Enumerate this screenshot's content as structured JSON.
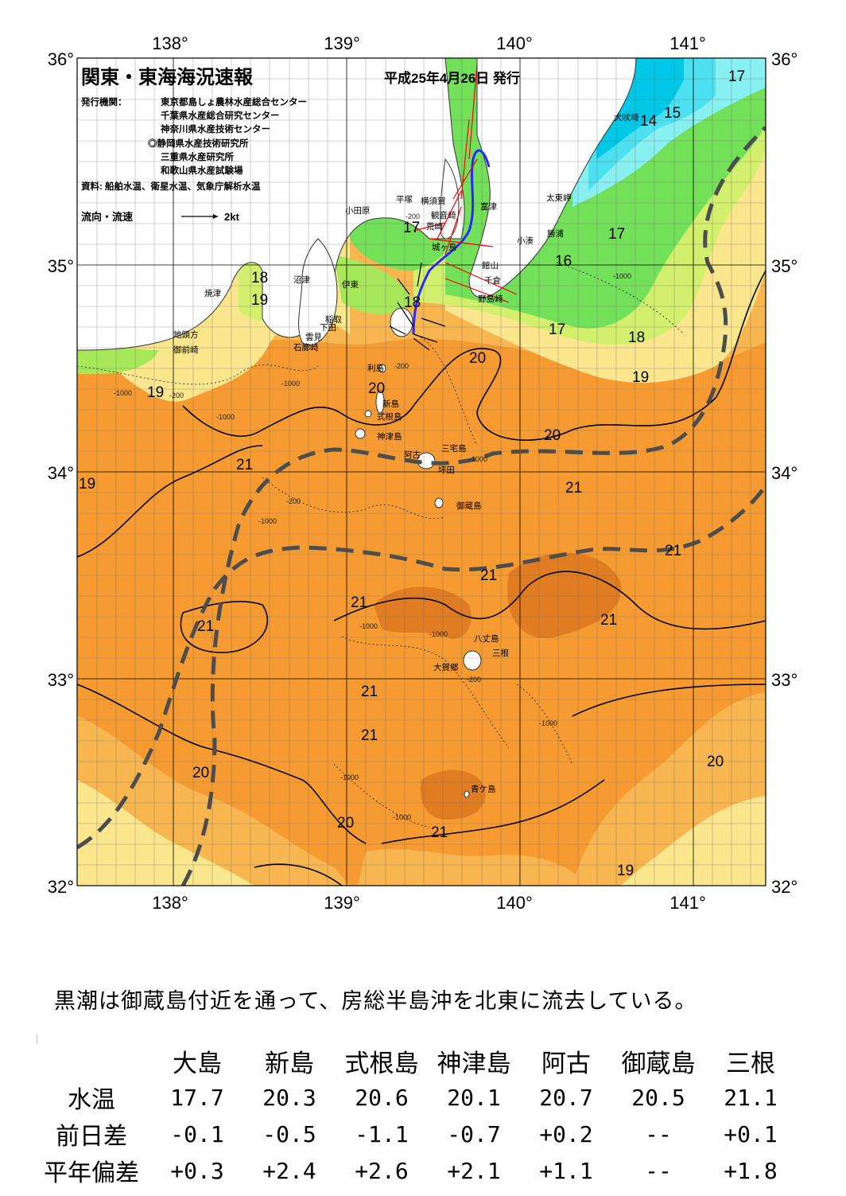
{
  "map": {
    "title": "関東・東海海況速報",
    "issue_date": "平成25年4月26日 発行",
    "publisher_label": "発行機関：",
    "publishers": [
      "東京都島しょ農林水産総合センター",
      "千葉県水産総合研究センター",
      "神奈川県水産技術センター",
      "◎静岡県水産技術研究所",
      "三重県水産研究所",
      "和歌山県水産試験場"
    ],
    "source": "資料: 船舶水温、衛星水温、気象庁解析水温",
    "legend_label": "流向・流速",
    "legend_value": "2kt",
    "longitude_labels": [
      "138°",
      "139°",
      "140°",
      "141°"
    ],
    "latitude_labels": [
      "36°",
      "35°",
      "34°",
      "33°",
      "32°"
    ],
    "place_labels": [
      "犬吠埼",
      "太東岬",
      "勝浦",
      "小湊",
      "富津",
      "館山",
      "千倉",
      "野島崎",
      "横須賀",
      "観音崎",
      "平塚",
      "荒崎",
      "城ヶ島",
      "小田原",
      "伊東",
      "稲取",
      "下田",
      "雲見",
      "石廊崎",
      "沼津",
      "焼津",
      "地頭方",
      "御前崎",
      "利島",
      "新島",
      "式根島",
      "神津島",
      "三宅島",
      "阿古",
      "坪田",
      "御蔵島",
      "八丈島",
      "三根",
      "大賀郷",
      "青ケ島"
    ],
    "temperature_labels": [
      "17",
      "15",
      "14",
      "17",
      "16",
      "17",
      "18",
      "19",
      "20",
      "20",
      "18",
      "17",
      "18",
      "19",
      "19",
      "20",
      "21",
      "21",
      "21",
      "21",
      "21",
      "21",
      "21",
      "21",
      "21",
      "20",
      "20",
      "21",
      "20",
      "19",
      "19"
    ],
    "depth_labels": [
      "-200",
      "-1000",
      "-200",
      "-1000",
      "-1000",
      "-200",
      "-1000",
      "-200",
      "-1000",
      "-1000",
      "-1000",
      "-1000",
      "-1000",
      "-200",
      "-1000",
      "-1000"
    ],
    "colors": {
      "land": "#ffffff",
      "t14": "#00c8e6",
      "t15": "#4de0f0",
      "t16": "#88f0f0",
      "t17": "#73e05a",
      "t18": "#a6e85a",
      "t19": "#d2f06e",
      "t19b": "#fae68c",
      "t20": "#f7b650",
      "t21": "#f59b32",
      "t22": "#e0781e",
      "kuroshio": "#4d4d4d",
      "track": "#2828ff",
      "vector": "#ff0000"
    }
  },
  "caption": "黒潮は御蔵島付近を通って、房総半島沖を北東に流去している。",
  "table": {
    "columns": [
      "大島",
      "新島",
      "式根島",
      "神津島",
      "阿古",
      "御蔵島",
      "三根"
    ],
    "rows": [
      {
        "label": "水温",
        "values": [
          "17.7",
          "20.3",
          "20.6",
          "20.1",
          "20.7",
          "20.5",
          "21.1"
        ]
      },
      {
        "label": "前日差",
        "values": [
          "-0.1",
          "-0.5",
          "-1.1",
          "-0.7",
          "+0.2",
          "--",
          "+0.1"
        ]
      },
      {
        "label": "平年偏差",
        "values": [
          "+0.3",
          "+2.4",
          "+2.6",
          "+2.1",
          "+1.1",
          "--",
          "+1.8"
        ]
      }
    ]
  }
}
